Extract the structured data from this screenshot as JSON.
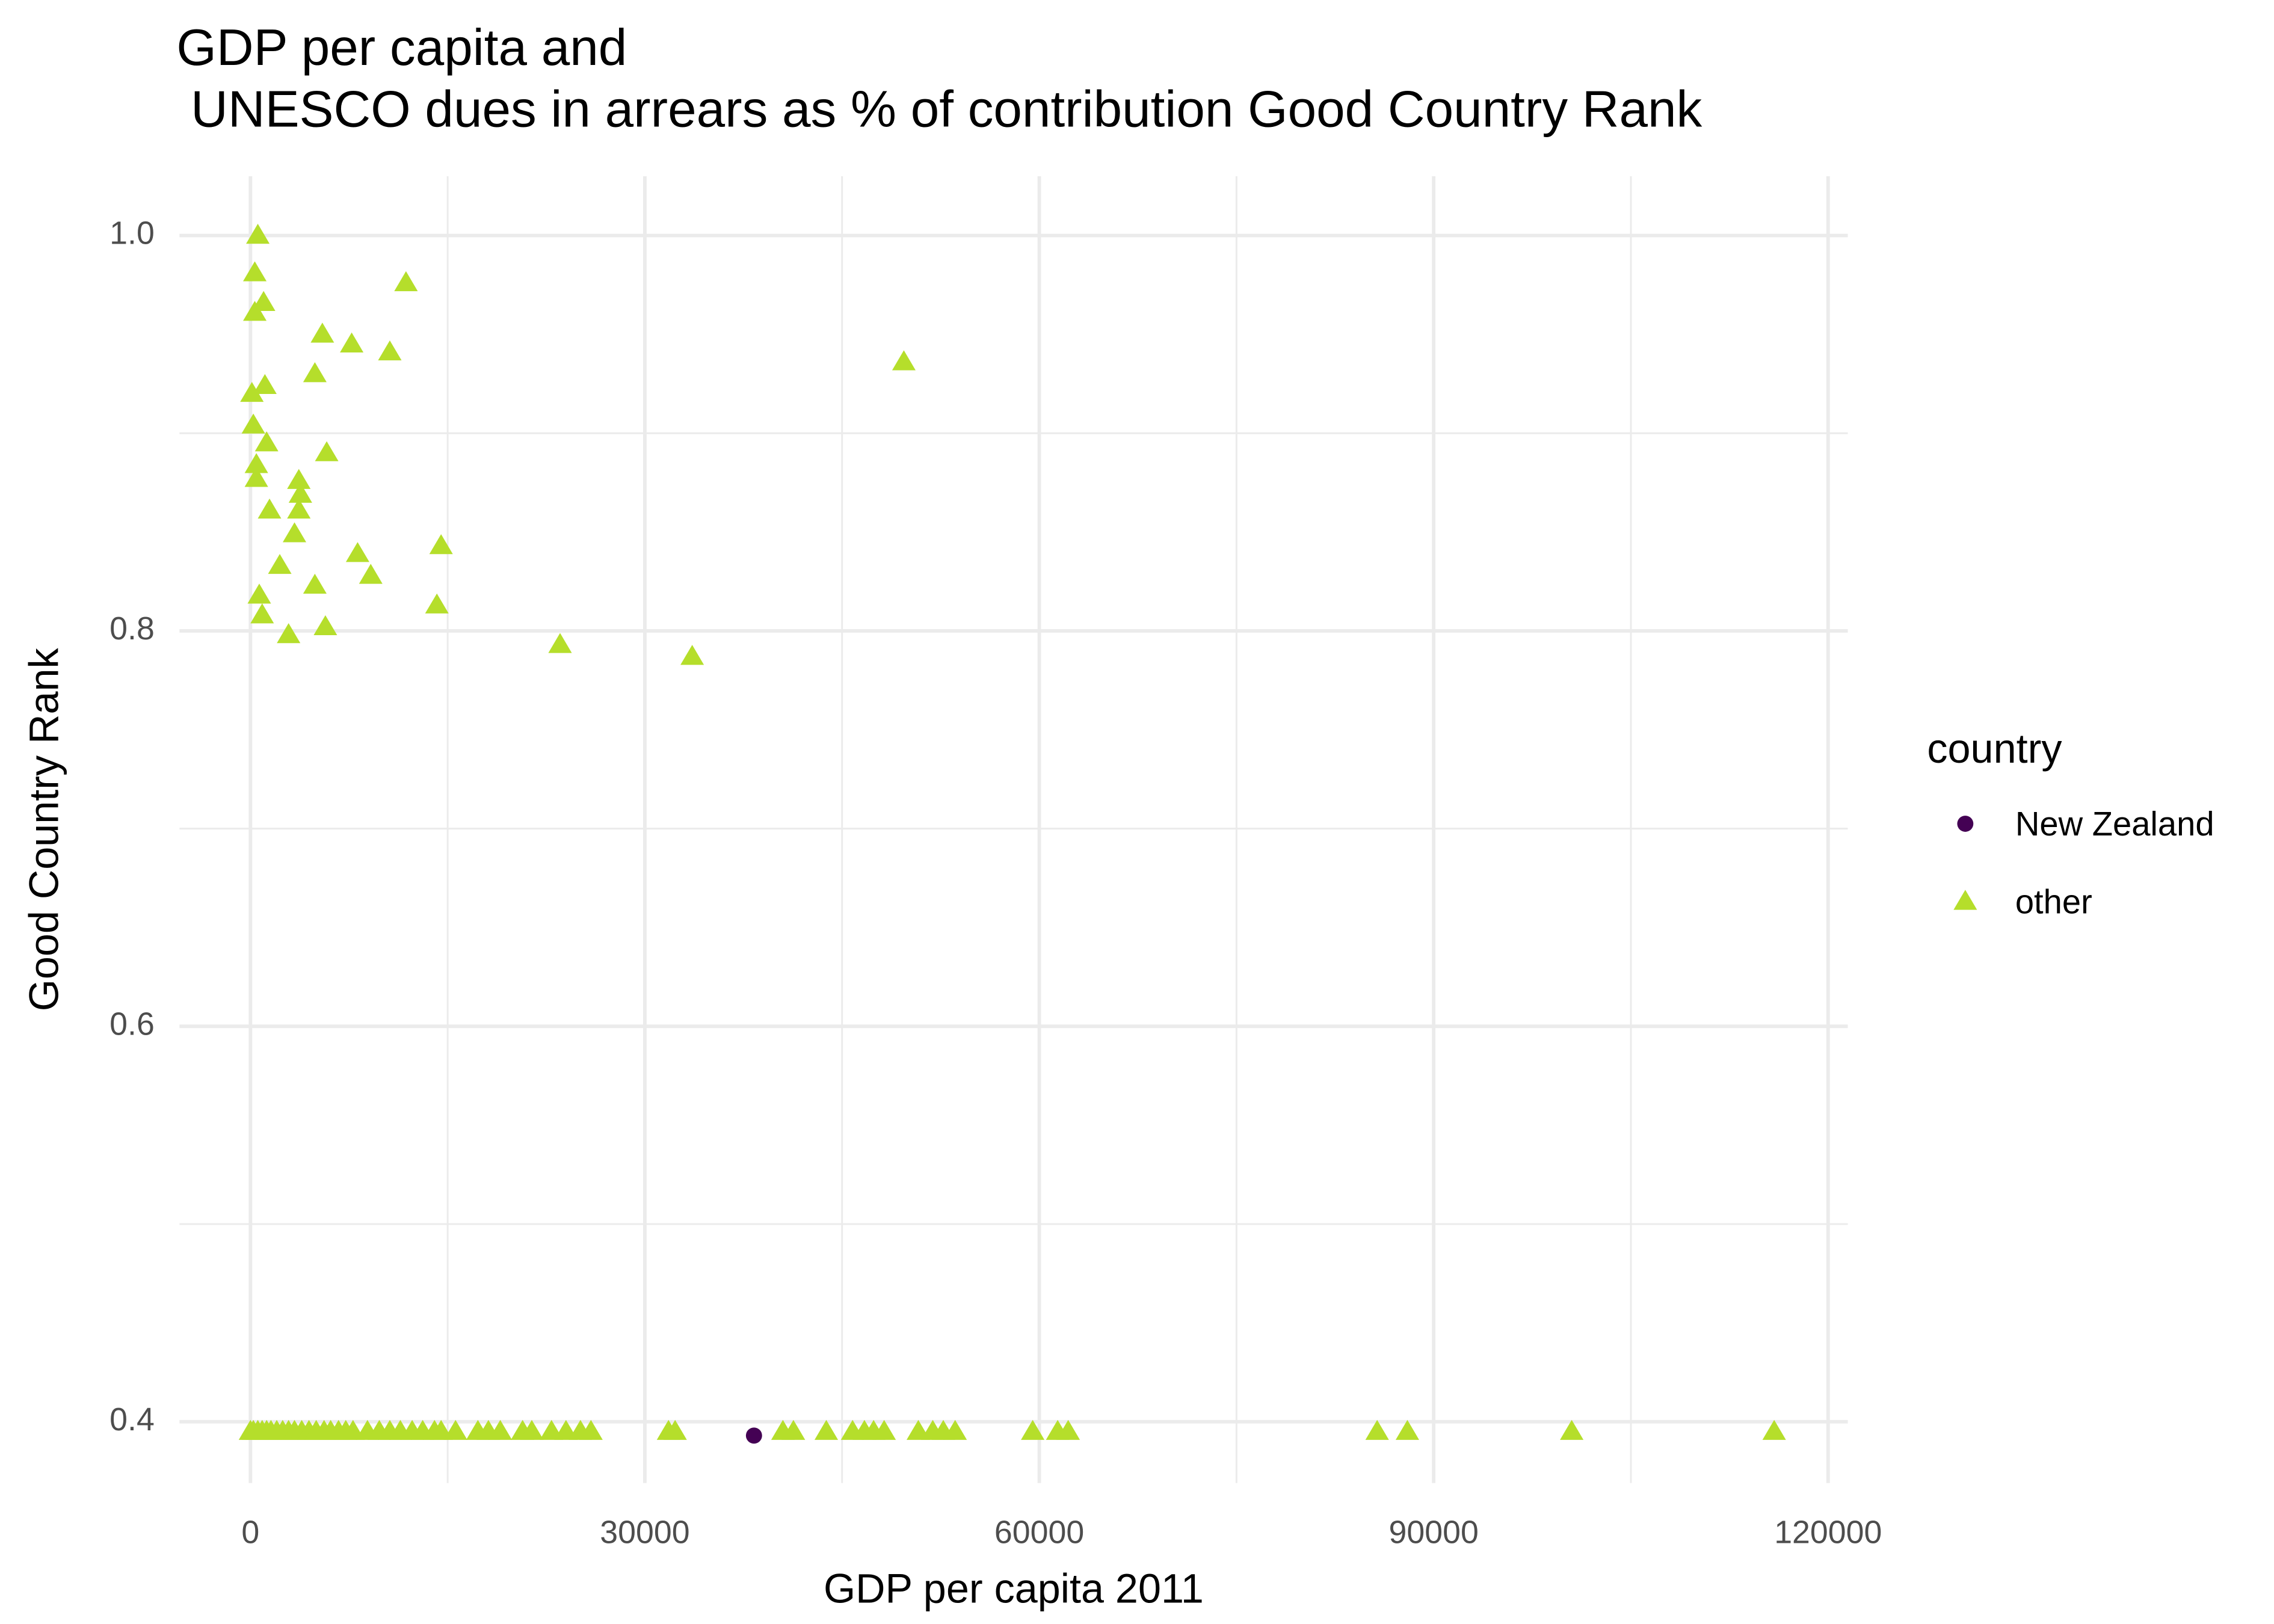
{
  "chart_data": {
    "type": "scatter",
    "title": [
      "GDP per capita and",
      " UNESCO dues in arrears as % of contribution Good Country Rank"
    ],
    "x_label": "GDP per capita 2011",
    "y_label": "Good Country Rank",
    "legend_title": "country",
    "legend_position": "right",
    "grid": true,
    "xlim": [
      -5400,
      121500
    ],
    "ylim": [
      0.369,
      1.03
    ],
    "xticks": [
      0,
      30000,
      60000,
      90000,
      120000
    ],
    "yticks": [
      0.4,
      0.6,
      0.8,
      {
        "value": 1.0,
        "label": "1.0"
      }
    ],
    "x_minor_ticks": [
      15000,
      45000,
      75000,
      105000
    ],
    "y_minor_ticks": [
      0.5,
      0.7,
      0.9
    ],
    "series": [
      {
        "name": "New Zealand",
        "color": "#440154",
        "shape": "circle",
        "x": [
          38300
        ],
        "values": [
          0.393
        ]
      },
      {
        "name": "other",
        "color": "#b5de2b",
        "shape": "triangle",
        "x": [
          560,
          330,
          1000,
          330,
          11830,
          5470,
          7700,
          10600,
          49700,
          4900,
          1100,
          110,
          220,
          1230,
          5800,
          450,
          450,
          3680,
          3800,
          1450,
          3680,
          3350,
          2230,
          8150,
          9150,
          14500,
          4900,
          670,
          14180,
          890,
          5700,
          2900,
          23550,
          33600,
          0,
          220,
          560,
          890,
          1230,
          1560,
          2000,
          2450,
          2900,
          3350,
          3900,
          4450,
          5000,
          5600,
          6100,
          6700,
          7250,
          7800,
          8900,
          9800,
          10600,
          11400,
          12300,
          13100,
          14000,
          14500,
          15600,
          17300,
          18100,
          19000,
          20700,
          21400,
          22900,
          24000,
          25100,
          25900,
          31800,
          32300,
          40500,
          41300,
          43800,
          45800,
          46700,
          47400,
          48200,
          50800,
          51900,
          52700,
          53600,
          59500,
          61400,
          62200,
          85700,
          88000,
          100500,
          115900
        ],
        "values": [
          1.0,
          0.981,
          0.966,
          0.961,
          0.976,
          0.95,
          0.945,
          0.941,
          0.936,
          0.93,
          0.924,
          0.92,
          0.904,
          0.895,
          0.89,
          0.884,
          0.877,
          0.876,
          0.869,
          0.861,
          0.861,
          0.849,
          0.833,
          0.839,
          0.828,
          0.843,
          0.823,
          0.818,
          0.813,
          0.808,
          0.802,
          0.798,
          0.793,
          0.787,
          0.395,
          0.395,
          0.395,
          0.395,
          0.395,
          0.395,
          0.395,
          0.395,
          0.395,
          0.395,
          0.395,
          0.395,
          0.395,
          0.395,
          0.395,
          0.395,
          0.395,
          0.395,
          0.395,
          0.395,
          0.395,
          0.395,
          0.395,
          0.395,
          0.395,
          0.395,
          0.395,
          0.395,
          0.395,
          0.395,
          0.395,
          0.395,
          0.395,
          0.395,
          0.395,
          0.395,
          0.395,
          0.395,
          0.395,
          0.395,
          0.395,
          0.395,
          0.395,
          0.395,
          0.395,
          0.395,
          0.395,
          0.395,
          0.395,
          0.395,
          0.395,
          0.395,
          0.395,
          0.395,
          0.395,
          0.395
        ]
      }
    ]
  }
}
